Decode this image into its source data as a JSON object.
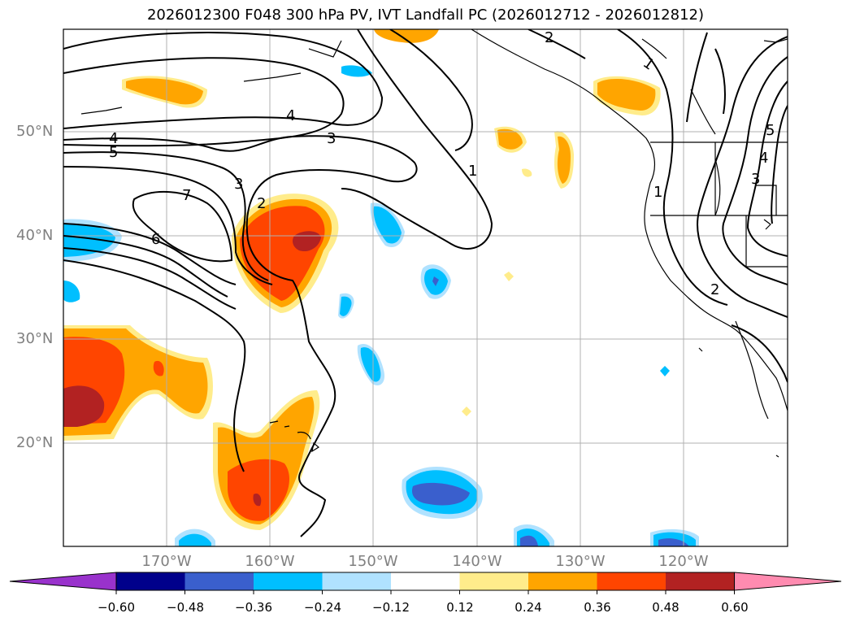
{
  "title": "2026012300 F048 300 hPa PV, IVT Landfall PC (2026012712 - 2026012812)",
  "lat_labels": [
    "50°N",
    "40°N",
    "30°N",
    "20°N"
  ],
  "lon_labels": [
    "170°W",
    "160°W",
    "150°W",
    "140°W",
    "130°W",
    "120°W"
  ],
  "contour_labels": [
    "2",
    "1",
    "4",
    "3",
    "4",
    "5",
    "7",
    "3",
    "2",
    "6",
    "1",
    "1",
    "2",
    "5",
    "4",
    "3"
  ],
  "colorbar": {
    "ticks": [
      "−0.60",
      "−0.48",
      "−0.36",
      "−0.24",
      "−0.12",
      "0.12",
      "0.24",
      "0.36",
      "0.48",
      "0.60"
    ],
    "colors": [
      "#9932cc",
      "#00008b",
      "#3a5fcd",
      "#00bfff",
      "#b0e2ff",
      "#ffffff",
      "#ffec8b",
      "#ffa500",
      "#ff4500",
      "#b22222",
      "#ff8bb0"
    ]
  }
}
